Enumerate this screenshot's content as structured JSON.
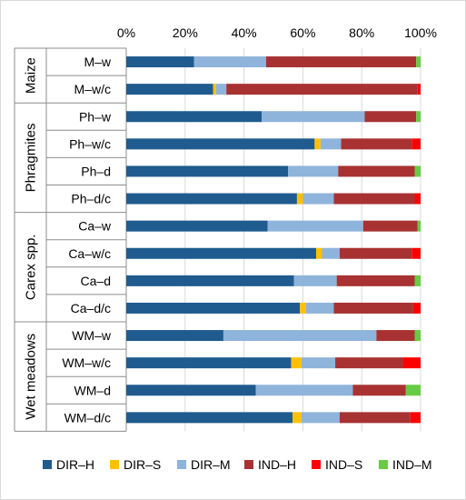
{
  "chart_data": {
    "type": "bar",
    "orientation": "horizontal",
    "stacked": "percent",
    "xlim": [
      0,
      100
    ],
    "x_ticks": [
      "0%",
      "20%",
      "40%",
      "60%",
      "80%",
      "100%"
    ],
    "legend_position": "bottom",
    "groups": [
      {
        "name": "Maize",
        "categories": [
          "M–w",
          "M–w/c"
        ]
      },
      {
        "name": "Phragmites",
        "categories": [
          "Ph–w",
          "Ph–w/c",
          "Ph–d",
          "Ph–d/c"
        ]
      },
      {
        "name": "Carex spp.",
        "categories": [
          "Ca–w",
          "Ca–w/c",
          "Ca–d",
          "Ca–d/c"
        ]
      },
      {
        "name": "Wet meadows",
        "categories": [
          "WM–w",
          "WM–w/c",
          "WM–d",
          "WM–d/c"
        ]
      }
    ],
    "categories": [
      "M–w",
      "M–w/c",
      "Ph–w",
      "Ph–w/c",
      "Ph–d",
      "Ph–d/c",
      "Ca–w",
      "Ca–w/c",
      "Ca–d",
      "Ca–d/c",
      "WM–w",
      "WM–w/c",
      "WM–d",
      "WM–d/c"
    ],
    "series": [
      {
        "name": "DIR–H",
        "color": "#1f5b8e",
        "values": [
          23,
          29.5,
          46,
          64,
          55,
          58,
          48,
          64.5,
          57,
          59,
          33,
          56,
          44,
          56.5
        ]
      },
      {
        "name": "DIR–S",
        "color": "#ffc000",
        "values": [
          0,
          1,
          0,
          2,
          0,
          2,
          0,
          2,
          0,
          2,
          0,
          3.5,
          0,
          3
        ]
      },
      {
        "name": "DIR–M",
        "color": "#8fb4dc",
        "values": [
          24.5,
          3.5,
          35,
          7,
          17,
          10.5,
          32.5,
          6,
          14.5,
          9.5,
          52,
          11.5,
          33,
          13
        ]
      },
      {
        "name": "IND–H",
        "color": "#a83232",
        "values": [
          51,
          65,
          17.5,
          24,
          26,
          27.5,
          18.5,
          24.5,
          26.5,
          27,
          13,
          23,
          18,
          24
        ]
      },
      {
        "name": "IND–S",
        "color": "#ff0000",
        "values": [
          0,
          1,
          0,
          3,
          0,
          2,
          0,
          3,
          0,
          2.5,
          0,
          6,
          0,
          3.5
        ]
      },
      {
        "name": "IND–M",
        "color": "#66cc44",
        "values": [
          1.5,
          0,
          1.5,
          0,
          2,
          0,
          1,
          0,
          2,
          0,
          2,
          0,
          5,
          0
        ]
      }
    ]
  }
}
